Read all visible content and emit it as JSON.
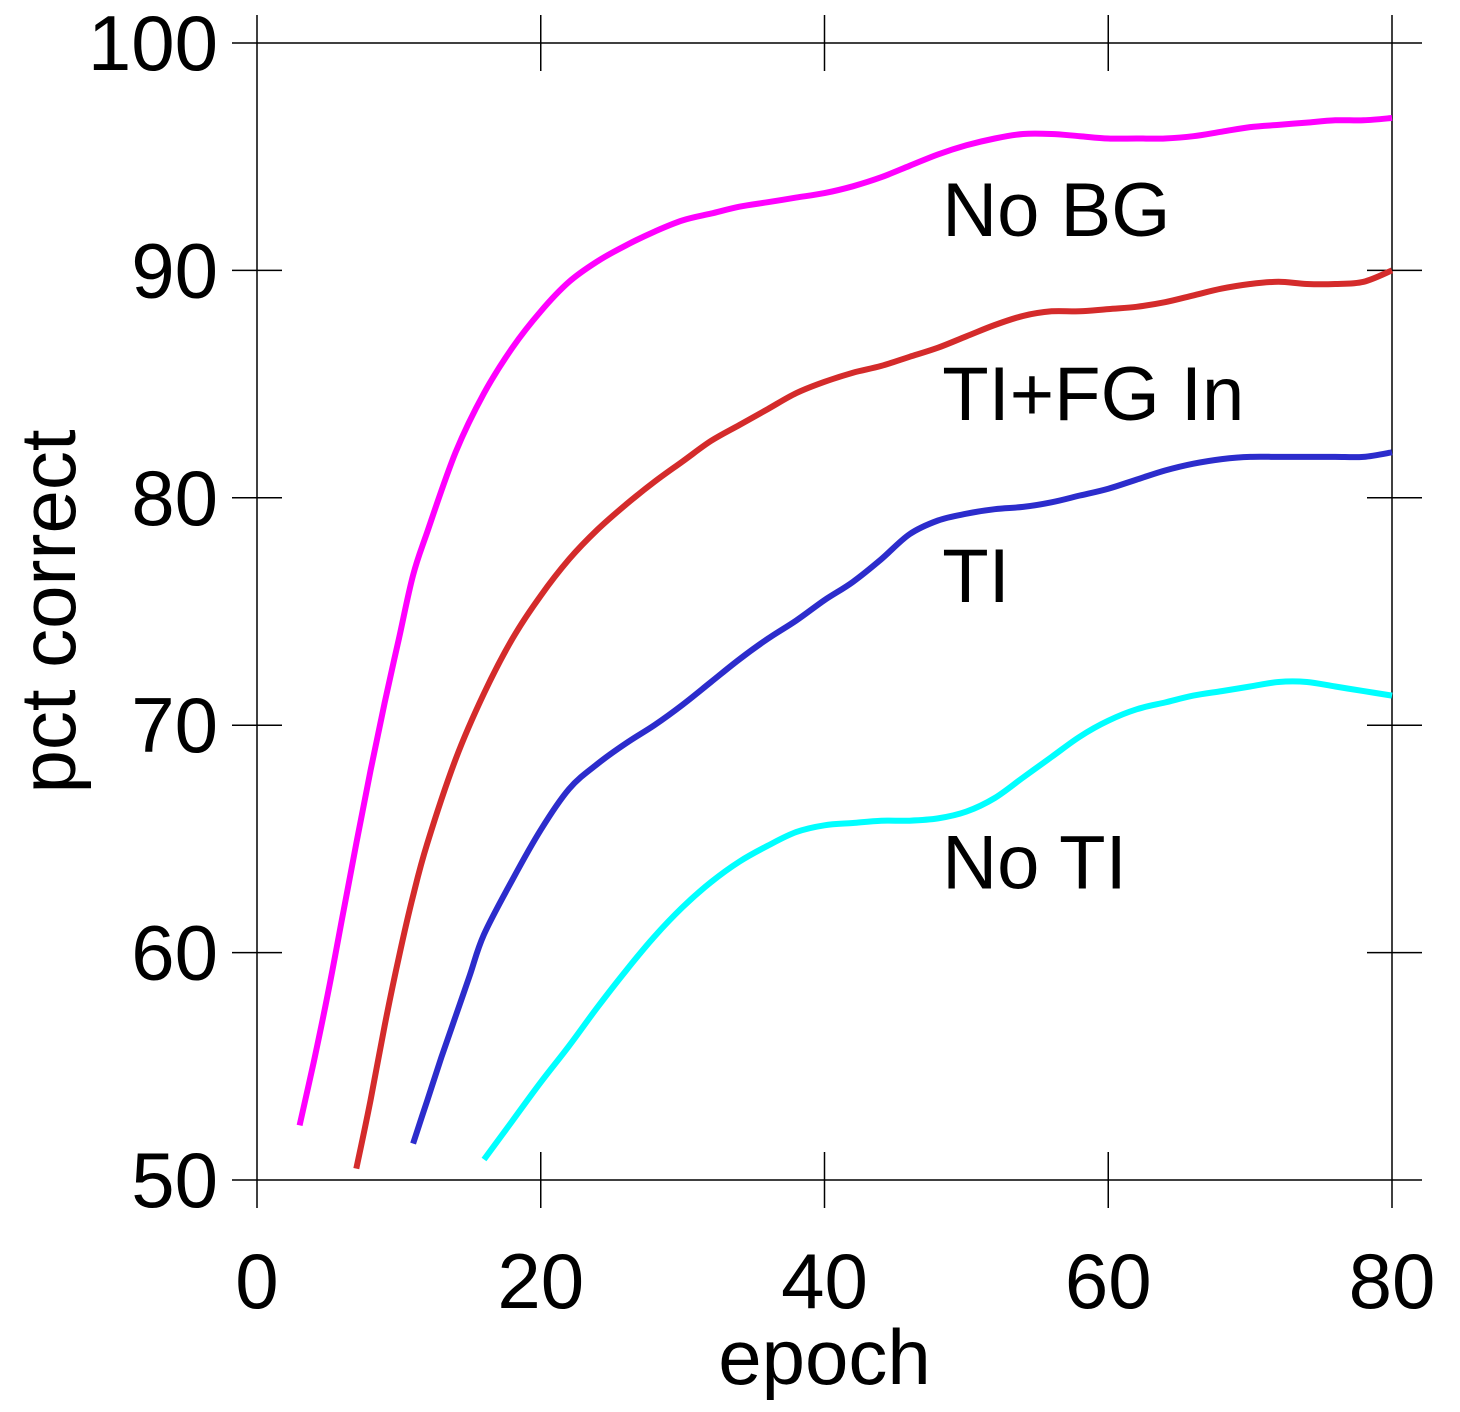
{
  "chart_data": {
    "type": "line",
    "title": "",
    "xlabel": "epoch",
    "ylabel": "pct correct",
    "xlim": [
      0,
      80
    ],
    "ylim": [
      50,
      100
    ],
    "x_ticks": [
      "0",
      "20",
      "40",
      "60",
      "80"
    ],
    "y_ticks": [
      "50",
      "60",
      "70",
      "80",
      "90",
      "100"
    ],
    "grid": false,
    "legend": "inline labels near curves",
    "series": [
      {
        "name": "No BG",
        "color": "#ff00ff",
        "x": [
          3,
          4,
          5,
          6,
          7,
          8,
          9,
          10,
          11,
          12,
          14,
          16,
          18,
          20,
          22,
          24,
          26,
          28,
          30,
          32,
          34,
          36,
          38,
          40,
          42,
          44,
          46,
          48,
          50,
          52,
          54,
          56,
          58,
          60,
          62,
          64,
          66,
          68,
          70,
          72,
          74,
          76,
          78,
          80
        ],
        "values": [
          52.4,
          55.2,
          58.2,
          61.5,
          64.8,
          68.0,
          71.0,
          73.8,
          76.6,
          78.5,
          82.0,
          84.6,
          86.6,
          88.2,
          89.5,
          90.4,
          91.1,
          91.7,
          92.2,
          92.5,
          92.8,
          93.0,
          93.2,
          93.4,
          93.7,
          94.1,
          94.6,
          95.1,
          95.5,
          95.8,
          96.0,
          96.0,
          95.9,
          95.8,
          95.8,
          95.8,
          95.9,
          96.1,
          96.3,
          96.4,
          96.5,
          96.6,
          96.6,
          96.7
        ]
      },
      {
        "name": "TI+FG In",
        "color": "#d42b2b",
        "x": [
          7,
          8,
          9,
          10,
          11,
          12,
          14,
          16,
          18,
          20,
          22,
          24,
          26,
          28,
          30,
          32,
          34,
          36,
          38,
          40,
          42,
          44,
          46,
          48,
          50,
          52,
          54,
          56,
          58,
          60,
          62,
          64,
          66,
          68,
          70,
          72,
          74,
          76,
          78,
          80
        ],
        "values": [
          50.5,
          53.5,
          56.8,
          59.8,
          62.5,
          64.8,
          68.5,
          71.4,
          73.8,
          75.7,
          77.3,
          78.6,
          79.7,
          80.7,
          81.6,
          82.5,
          83.2,
          83.9,
          84.6,
          85.1,
          85.5,
          85.8,
          86.2,
          86.6,
          87.1,
          87.6,
          88.0,
          88.2,
          88.2,
          88.3,
          88.4,
          88.6,
          88.9,
          89.2,
          89.4,
          89.5,
          89.4,
          89.4,
          89.5,
          90.0
        ]
      },
      {
        "name": "TI",
        "color": "#2c2ccc",
        "x": [
          11,
          12,
          13,
          14,
          15,
          16,
          18,
          20,
          22,
          24,
          26,
          28,
          30,
          32,
          34,
          36,
          38,
          40,
          42,
          44,
          46,
          48,
          50,
          52,
          54,
          56,
          58,
          60,
          62,
          64,
          66,
          68,
          70,
          72,
          74,
          76,
          78,
          80
        ],
        "values": [
          51.6,
          53.5,
          55.4,
          57.2,
          59.0,
          60.8,
          63.2,
          65.4,
          67.2,
          68.3,
          69.2,
          70.0,
          70.9,
          71.9,
          72.9,
          73.8,
          74.6,
          75.5,
          76.3,
          77.3,
          78.4,
          79.0,
          79.3,
          79.5,
          79.6,
          79.8,
          80.1,
          80.4,
          80.8,
          81.2,
          81.5,
          81.7,
          81.8,
          81.8,
          81.8,
          81.8,
          81.8,
          82.0
        ]
      },
      {
        "name": "No TI",
        "color": "#00ffff",
        "x": [
          16,
          18,
          20,
          22,
          24,
          26,
          28,
          30,
          32,
          34,
          36,
          38,
          40,
          42,
          44,
          46,
          48,
          50,
          52,
          54,
          56,
          58,
          60,
          62,
          64,
          66,
          68,
          70,
          72,
          74,
          76,
          78,
          80
        ],
        "values": [
          50.9,
          52.6,
          54.3,
          55.9,
          57.6,
          59.2,
          60.7,
          62.0,
          63.1,
          64.0,
          64.7,
          65.3,
          65.6,
          65.7,
          65.8,
          65.8,
          65.9,
          66.2,
          66.8,
          67.7,
          68.6,
          69.5,
          70.2,
          70.7,
          71.0,
          71.3,
          71.5,
          71.7,
          71.9,
          71.9,
          71.7,
          71.5,
          71.3
        ]
      }
    ],
    "labels": [
      {
        "text": "No BG",
        "x": 48.3,
        "y": 92.7
      },
      {
        "text": "TI+FG In",
        "x": 48.3,
        "y": 84.6
      },
      {
        "text": "TI",
        "x": 48.3,
        "y": 76.6
      },
      {
        "text": "No TI",
        "x": 48.3,
        "y": 64.0
      }
    ]
  }
}
